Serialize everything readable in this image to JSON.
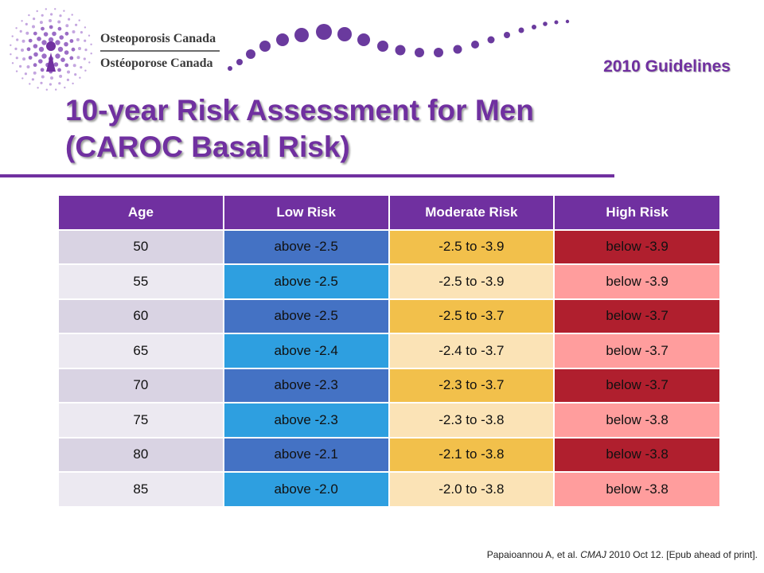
{
  "logo": {
    "line1": "Osteoporosis Canada",
    "line2": "Ostéoporose Canada"
  },
  "header": {
    "guidelines_label": "2010 Guidelines"
  },
  "title": {
    "line1": "10-year Risk Assessment for Men",
    "line2": "(CAROC Basal Risk)"
  },
  "table": {
    "headers": [
      "Age",
      "Low Risk",
      "Moderate Risk",
      "High Risk"
    ],
    "rows": [
      [
        "50",
        "above -2.5",
        "-2.5 to -3.9",
        "below -3.9"
      ],
      [
        "55",
        "above -2.5",
        "-2.5 to -3.9",
        "below -3.9"
      ],
      [
        "60",
        "above -2.5",
        "-2.5 to -3.7",
        "below -3.7"
      ],
      [
        "65",
        "above -2.4",
        "-2.4 to -3.7",
        "below -3.7"
      ],
      [
        "70",
        "above -2.3",
        "-2.3 to -3.7",
        "below -3.7"
      ],
      [
        "75",
        "above -2.3",
        "-2.3 to -3.8",
        "below -3.8"
      ],
      [
        "80",
        "above -2.1",
        "-2.1 to -3.8",
        "below -3.8"
      ],
      [
        "85",
        "above -2.0",
        "-2.0 to -3.8",
        "below -3.8"
      ]
    ]
  },
  "citation": {
    "authors": "Papaioannou A, et al.",
    "journal": "CMAJ",
    "rest": "2010 Oct 12. [Epub ahead of print]."
  },
  "colors": {
    "brand_purple": "#7030a0",
    "low_risk": "#4472c4",
    "moderate_risk": "#f2c04b",
    "high_risk": "#b01f2e"
  }
}
